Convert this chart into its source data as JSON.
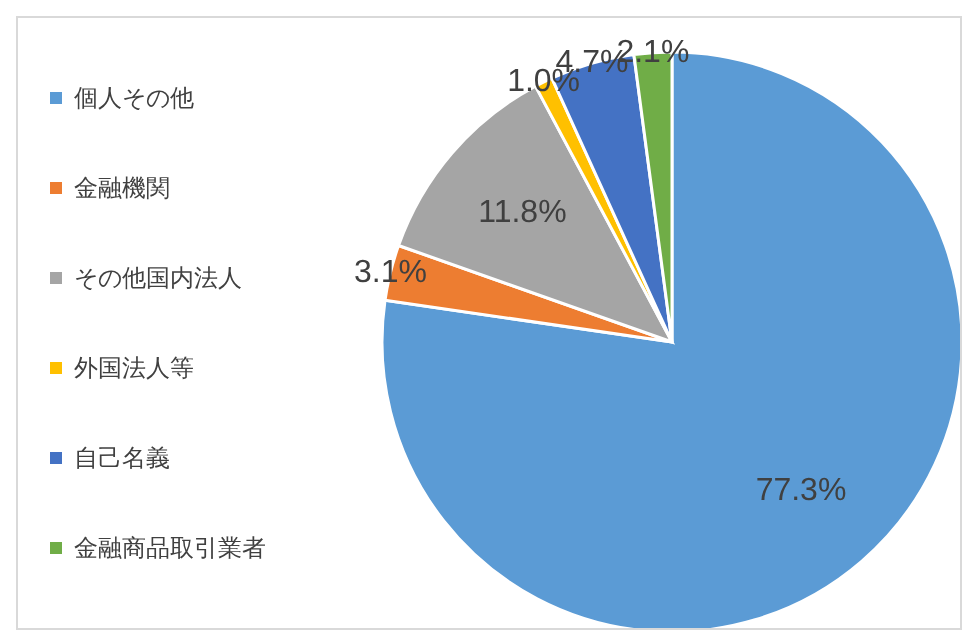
{
  "chart_data": {
    "type": "pie",
    "categories": [
      "個人その他",
      "金融機関",
      "その他国内法人",
      "外国法人等",
      "自己名義",
      "金融商品取引業者"
    ],
    "values": [
      77.3,
      3.1,
      11.8,
      1.0,
      4.7,
      2.1
    ],
    "value_labels": [
      "77.3%",
      "3.1%",
      "11.8%",
      "1.0%",
      "4.7%",
      "2.1%"
    ],
    "colors": [
      "#5b9bd5",
      "#ed7d31",
      "#a5a5a5",
      "#ffc000",
      "#4472c4",
      "#70ad47"
    ],
    "legend": "left"
  }
}
